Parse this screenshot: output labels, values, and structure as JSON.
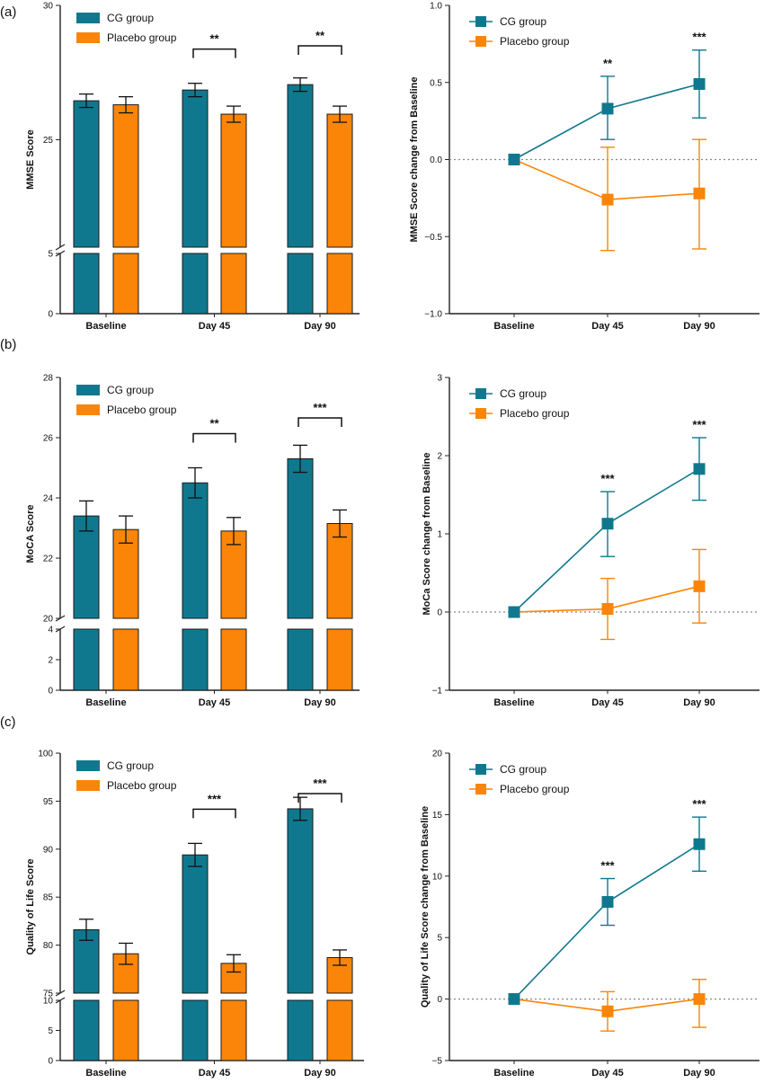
{
  "colors": {
    "cg": "#10788e",
    "placebo": "#fb8508",
    "axis": "#222222",
    "zero_line": "#888888"
  },
  "legend": {
    "cg": "CG group",
    "placebo": "Placebo group"
  },
  "chart_data": [
    {
      "panel": "(a)",
      "side": "left",
      "type": "bar",
      "title": "",
      "xlabel": "",
      "ylabel": "MMSE Score",
      "categories": [
        "Baseline",
        "Day 45",
        "Day 90"
      ],
      "ylim_lower": [
        0,
        5
      ],
      "ylim_upper": [
        21,
        30
      ],
      "axis_break": true,
      "lower_ticks": [
        "0",
        "5"
      ],
      "upper_ticks": [
        "25",
        "30"
      ],
      "series": [
        {
          "name": "CG group",
          "values": [
            26.45,
            26.85,
            27.05
          ],
          "err": [
            0.25,
            0.25,
            0.25
          ]
        },
        {
          "name": "Placebo group",
          "values": [
            26.3,
            25.95,
            25.95
          ],
          "err": [
            0.3,
            0.3,
            0.3
          ]
        }
      ],
      "significance": [
        {
          "category": "Day 45",
          "label": "**"
        },
        {
          "category": "Day 90",
          "label": "**"
        }
      ],
      "grid": false,
      "legend": "top-left"
    },
    {
      "panel": "(a)",
      "side": "right",
      "type": "line",
      "title": "",
      "xlabel": "",
      "ylabel": "MMSE Score change from Baseline",
      "categories": [
        "Baseline",
        "Day 45",
        "Day 90"
      ],
      "ylim": [
        -1.0,
        1.0
      ],
      "ticks": [
        "−1.0",
        "−0.5",
        "0.0",
        "0.5",
        "1.0"
      ],
      "series": [
        {
          "name": "CG group",
          "values": [
            0,
            0.33,
            0.49
          ],
          "err_low": [
            0,
            0.2,
            0.22
          ],
          "err_high": [
            0,
            0.21,
            0.22
          ]
        },
        {
          "name": "Placebo group",
          "values": [
            0,
            -0.26,
            -0.22
          ],
          "err_low": [
            0,
            0.33,
            0.36
          ],
          "err_high": [
            0,
            0.34,
            0.35
          ]
        }
      ],
      "significance": [
        {
          "category": "Day 45",
          "label": "**"
        },
        {
          "category": "Day 90",
          "label": "***"
        }
      ],
      "zero_line": true,
      "grid": false,
      "legend": "top-left"
    },
    {
      "panel": "(b)",
      "side": "left",
      "type": "bar",
      "title": "",
      "xlabel": "",
      "ylabel": "MoCA Score",
      "categories": [
        "Baseline",
        "Day 45",
        "Day 90"
      ],
      "ylim_lower": [
        0,
        4
      ],
      "ylim_upper": [
        20,
        28
      ],
      "axis_break": true,
      "lower_ticks": [
        "0",
        "2",
        "4"
      ],
      "upper_ticks": [
        "20",
        "22",
        "24",
        "26",
        "28"
      ],
      "series": [
        {
          "name": "CG group",
          "values": [
            23.4,
            24.5,
            25.3
          ],
          "err": [
            0.5,
            0.5,
            0.45
          ]
        },
        {
          "name": "Placebo group",
          "values": [
            22.95,
            22.9,
            23.15
          ],
          "err": [
            0.45,
            0.45,
            0.45
          ]
        }
      ],
      "significance": [
        {
          "category": "Day 45",
          "label": "**"
        },
        {
          "category": "Day 90",
          "label": "***"
        }
      ],
      "grid": false,
      "legend": "top-left"
    },
    {
      "panel": "(b)",
      "side": "right",
      "type": "line",
      "title": "",
      "xlabel": "",
      "ylabel": "MoCa Score change from Baseline",
      "categories": [
        "Baseline",
        "Day 45",
        "Day 90"
      ],
      "ylim": [
        -1,
        3
      ],
      "ticks": [
        "−1",
        "0",
        "1",
        "2",
        "3"
      ],
      "series": [
        {
          "name": "CG group",
          "values": [
            0,
            1.13,
            1.83
          ],
          "err_low": [
            0,
            0.42,
            0.4
          ],
          "err_high": [
            0,
            0.41,
            0.4
          ]
        },
        {
          "name": "Placebo group",
          "values": [
            0,
            0.04,
            0.33
          ],
          "err_low": [
            0,
            0.39,
            0.47
          ],
          "err_high": [
            0,
            0.39,
            0.47
          ]
        }
      ],
      "significance": [
        {
          "category": "Day 45",
          "label": "***"
        },
        {
          "category": "Day 90",
          "label": "***"
        }
      ],
      "zero_line": true,
      "grid": false,
      "legend": "top-left"
    },
    {
      "panel": "(c)",
      "side": "left",
      "type": "bar",
      "title": "",
      "xlabel": "",
      "ylabel": "Quality of Life Score",
      "categories": [
        "Baseline",
        "Day 45",
        "Day 90"
      ],
      "ylim_lower": [
        0,
        10
      ],
      "ylim_upper": [
        75,
        100
      ],
      "axis_break": true,
      "lower_ticks": [
        "0",
        "5",
        "10"
      ],
      "upper_ticks": [
        "75",
        "80",
        "85",
        "90",
        "95",
        "100"
      ],
      "series": [
        {
          "name": "CG group",
          "values": [
            81.6,
            89.4,
            94.2
          ],
          "err": [
            1.1,
            1.2,
            1.2
          ]
        },
        {
          "name": "Placebo group",
          "values": [
            79.1,
            78.1,
            78.7
          ],
          "err": [
            1.1,
            0.9,
            0.8
          ]
        }
      ],
      "significance": [
        {
          "category": "Day 45",
          "label": "***"
        },
        {
          "category": "Day 90",
          "label": "***"
        }
      ],
      "grid": false,
      "legend": "top-left"
    },
    {
      "panel": "(c)",
      "side": "right",
      "type": "line",
      "title": "",
      "xlabel": "",
      "ylabel": "Quality of Life Score change from Baseline",
      "categories": [
        "Baseline",
        "Day 45",
        "Day 90"
      ],
      "ylim": [
        -5,
        20
      ],
      "ticks": [
        "−5",
        "0",
        "5",
        "10",
        "15",
        "20"
      ],
      "series": [
        {
          "name": "CG group",
          "values": [
            0,
            7.9,
            12.6
          ],
          "err_low": [
            0,
            1.9,
            2.2
          ],
          "err_high": [
            0,
            1.9,
            2.2
          ]
        },
        {
          "name": "Placebo group",
          "values": [
            0,
            -1.0,
            0.0
          ],
          "err_low": [
            0,
            1.6,
            2.3
          ],
          "err_high": [
            0,
            1.6,
            1.6
          ]
        }
      ],
      "significance": [
        {
          "category": "Day 45",
          "label": "***"
        },
        {
          "category": "Day 90",
          "label": "***"
        }
      ],
      "zero_line": true,
      "grid": false,
      "legend": "top-left"
    }
  ]
}
